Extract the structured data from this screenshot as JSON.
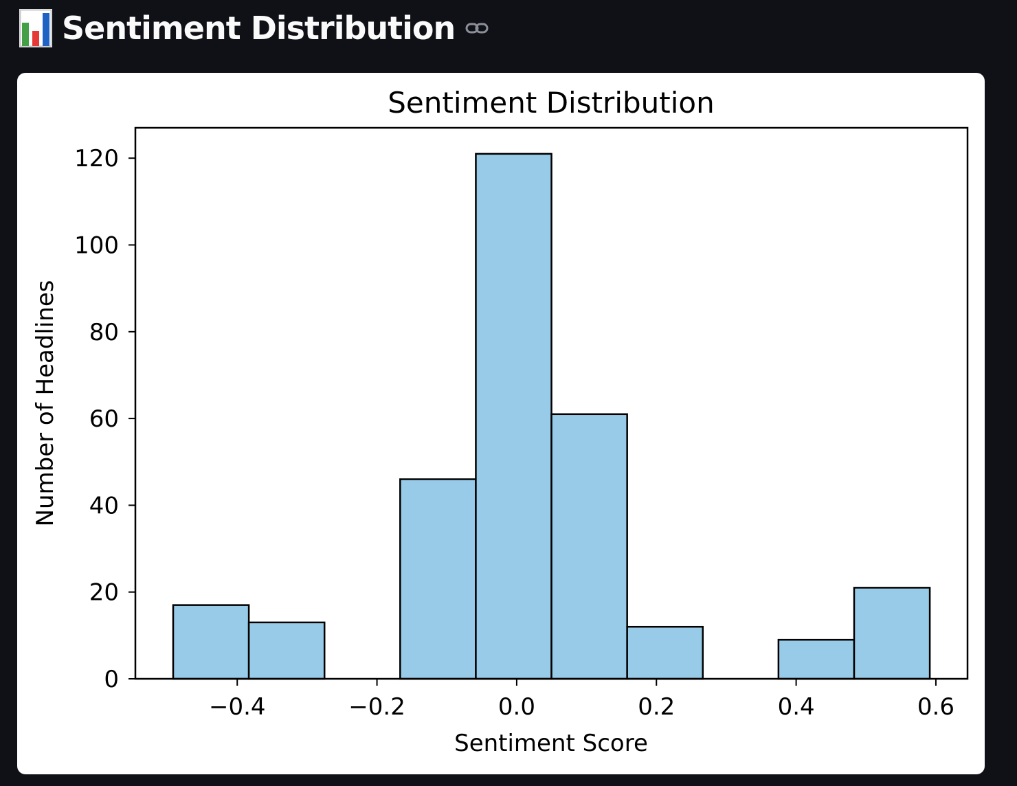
{
  "header": {
    "emoji_icon": "bar-chart-icon",
    "title": "Sentiment Distribution",
    "anchor_icon": "link-icon"
  },
  "colors": {
    "page_background": "#0f1117",
    "card_background": "#ffffff",
    "bar_fill": "#97cbe8",
    "bar_edge": "#000000"
  },
  "chart_data": {
    "type": "bar",
    "title": "Sentiment Distribution",
    "xlabel": "Sentiment Score",
    "ylabel": "Number of Headlines",
    "xlim": [
      -0.5458,
      0.6453
    ],
    "ylim": [
      0,
      127
    ],
    "xticks": [
      -0.4,
      -0.2,
      0.0,
      0.2,
      0.4,
      0.6
    ],
    "xtick_labels": [
      "−0.4",
      "−0.2",
      "0.0",
      "0.2",
      "0.4",
      "0.6"
    ],
    "yticks": [
      0,
      20,
      40,
      60,
      80,
      100,
      120
    ],
    "ytick_labels": [
      "0",
      "20",
      "40",
      "60",
      "80",
      "100",
      "120"
    ],
    "bin_edges": [
      -0.4917,
      -0.3834,
      -0.2751,
      -0.1668,
      -0.0585,
      0.0498,
      0.1581,
      0.2664,
      0.3747,
      0.483,
      0.5913
    ],
    "values": [
      17,
      13,
      0,
      46,
      121,
      61,
      12,
      0,
      9,
      21
    ],
    "grid": false,
    "legend": "none"
  }
}
